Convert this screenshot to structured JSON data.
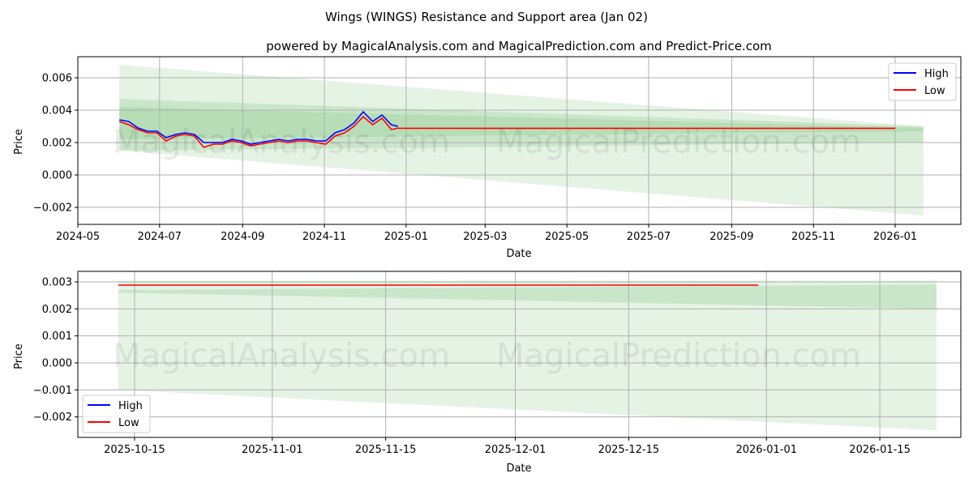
{
  "title": "Wings (WINGS) Resistance and Support area (Jan 02)",
  "chart_data": [
    {
      "type": "line",
      "subtitle": "powered by MagicalAnalysis.com and MagicalPrediction.com and Predict-Price.com",
      "xlabel": "Date",
      "ylabel": "Price",
      "xlim": [
        "2024-05-01",
        "2026-02-19"
      ],
      "ylim": [
        -0.00305,
        0.0073
      ],
      "xticks": [
        [
          "2024-05-01",
          "2024-05"
        ],
        [
          "2024-07-01",
          "2024-07"
        ],
        [
          "2024-09-01",
          "2024-09"
        ],
        [
          "2024-11-01",
          "2024-11"
        ],
        [
          "2025-01-01",
          "2025-01"
        ],
        [
          "2025-03-01",
          "2025-03"
        ],
        [
          "2025-05-01",
          "2025-05"
        ],
        [
          "2025-07-01",
          "2025-07"
        ],
        [
          "2025-09-01",
          "2025-09"
        ],
        [
          "2025-11-01",
          "2025-11"
        ],
        [
          "2026-01-01",
          "2026-01"
        ]
      ],
      "yticks": [
        [
          0.006,
          "0.006"
        ],
        [
          0.004,
          "0.004"
        ],
        [
          0.002,
          "0.002"
        ],
        [
          0,
          "0.000"
        ],
        [
          -0.002,
          "−0.002"
        ]
      ],
      "legend": {
        "position": "top-right",
        "entries": [
          "High",
          "Low"
        ]
      },
      "watermarks": [
        "MagicalAnalysis.com",
        "MagicalPrediction.com"
      ],
      "bands": [
        {
          "name": "wide-band",
          "x": [
            "2024-06-01",
            "2026-01-22"
          ],
          "top": [
            0.0068,
            0.003
          ],
          "bottom": [
            0.0015,
            -0.0025
          ],
          "color": "#2ca02c",
          "alpha": 0.12
        },
        {
          "name": "mid-band",
          "x": [
            "2024-06-01",
            "2026-01-22"
          ],
          "top": [
            0.0047,
            0.003
          ],
          "bottom": [
            0.0015,
            0.002
          ],
          "color": "#2ca02c",
          "alpha": 0.15
        },
        {
          "name": "inner-band",
          "x": [
            "2024-06-01",
            "2026-01-22"
          ],
          "top": [
            0.0042,
            0.0029
          ],
          "bottom": [
            0.0022,
            0.0027
          ],
          "color": "#2ca02c",
          "alpha": 0.12
        }
      ],
      "dates": [
        "2024-06-01",
        "2024-06-08",
        "2024-06-15",
        "2024-06-22",
        "2024-06-29",
        "2024-07-06",
        "2024-07-13",
        "2024-07-20",
        "2024-07-27",
        "2024-08-03",
        "2024-08-10",
        "2024-08-17",
        "2024-08-24",
        "2024-08-31",
        "2024-09-07",
        "2024-09-14",
        "2024-09-21",
        "2024-09-28",
        "2024-10-05",
        "2024-10-12",
        "2024-10-19",
        "2024-10-26",
        "2024-11-02",
        "2024-11-09",
        "2024-11-16",
        "2024-11-23",
        "2024-11-30",
        "2024-12-07",
        "2024-12-14",
        "2024-12-21",
        "2024-12-26"
      ],
      "series": [
        {
          "name": "High",
          "color": "#0000ff",
          "values": [
            0.0034,
            0.0033,
            0.0029,
            0.0027,
            0.0027,
            0.0023,
            0.0025,
            0.0026,
            0.0025,
            0.002,
            0.002,
            0.002,
            0.0022,
            0.0021,
            0.0019,
            0.002,
            0.0021,
            0.0022,
            0.0021,
            0.0022,
            0.0022,
            0.0021,
            0.0021,
            0.0026,
            0.0028,
            0.0032,
            0.0039,
            0.0033,
            0.0037,
            0.0031,
            0.003
          ]
        },
        {
          "name": "Low",
          "color": "#ff0000",
          "values": [
            0.0033,
            0.0031,
            0.0028,
            0.0026,
            0.0026,
            0.0021,
            0.0024,
            0.0025,
            0.0024,
            0.0017,
            0.0019,
            0.0019,
            0.0021,
            0.002,
            0.0018,
            0.0019,
            0.002,
            0.0021,
            0.002,
            0.0021,
            0.0021,
            0.002,
            0.0019,
            0.0024,
            0.0026,
            0.003,
            0.0036,
            0.0031,
            0.0035,
            0.0028,
            0.0029
          ]
        }
      ],
      "low_projection": {
        "x": [
          "2024-12-26",
          "2026-01-01"
        ],
        "value": 0.00288
      }
    },
    {
      "type": "line",
      "xlabel": "Date",
      "ylabel": "Price",
      "xlim": [
        "2025-10-08",
        "2026-01-25"
      ],
      "ylim": [
        -0.00276,
        0.00339
      ],
      "xticks": [
        [
          "2025-10-15",
          "2025-10-15"
        ],
        [
          "2025-11-01",
          "2025-11-01"
        ],
        [
          "2025-11-15",
          "2025-11-15"
        ],
        [
          "2025-12-01",
          "2025-12-01"
        ],
        [
          "2025-12-15",
          "2025-12-15"
        ],
        [
          "2026-01-01",
          "2026-01-01"
        ],
        [
          "2026-01-15",
          "2026-01-15"
        ]
      ],
      "yticks": [
        [
          0.003,
          "0.003"
        ],
        [
          0.002,
          "0.002"
        ],
        [
          0.001,
          "0.001"
        ],
        [
          0,
          "0.000"
        ],
        [
          -0.001,
          "−0.001"
        ],
        [
          -0.002,
          "−0.002"
        ]
      ],
      "legend": {
        "position": "lower-left",
        "entries": [
          "High",
          "Low"
        ]
      },
      "watermarks": [
        "MagicalAnalysis.com",
        "MagicalPrediction.com"
      ],
      "bands": [
        {
          "name": "wide-band",
          "x": [
            "2025-10-13",
            "2026-01-22"
          ],
          "top": [
            0.00305,
            0.00305
          ],
          "bottom": [
            -0.001,
            -0.0025
          ],
          "color": "#2ca02c",
          "alpha": 0.12
        },
        {
          "name": "mid-band",
          "x": [
            "2025-10-13",
            "2026-01-22"
          ],
          "top": [
            0.0027,
            0.0029
          ],
          "bottom": [
            0.0026,
            0.002
          ],
          "color": "#2ca02c",
          "alpha": 0.15
        }
      ],
      "low_projection": {
        "x": [
          "2025-10-13",
          "2025-12-31"
        ],
        "value": 0.00288
      }
    }
  ]
}
